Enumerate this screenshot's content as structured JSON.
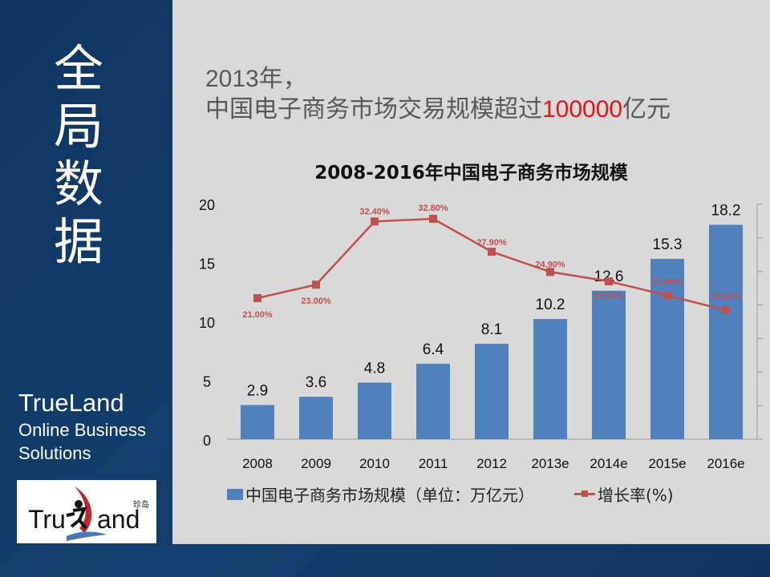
{
  "sidebar": {
    "vertical_title": [
      "全",
      "局",
      "数",
      "据"
    ],
    "brand_name": "TrueLand",
    "brand_line2": "Online Business",
    "brand_line3": "Solutions",
    "logo_text": "TrueLand",
    "logo_cn": "珍岛"
  },
  "headline": {
    "line1": "2013年，",
    "line2_prefix": "中国电子商务市场交易规模超过",
    "line2_highlight": "100000",
    "line2_suffix": "亿元"
  },
  "colors": {
    "bar": "#4f81bd",
    "line": "#c0504d",
    "highlight": "#e8111a",
    "panel": "#d9d9d9",
    "sidebar": "#123f6e"
  },
  "chart_data": {
    "type": "bar+line",
    "title": "2008-2016年中国电子商务市场规模",
    "categories": [
      "2008",
      "2009",
      "2010",
      "2011",
      "2012",
      "2013e",
      "2014e",
      "2015e",
      "2016e"
    ],
    "series": [
      {
        "name": "中国电子商务市场规模（单位：万亿元）",
        "type": "bar",
        "values": [
          2.9,
          3.6,
          4.8,
          6.4,
          8.1,
          10.2,
          12.6,
          15.3,
          18.2
        ]
      },
      {
        "name": "增长率(%)",
        "type": "line",
        "axis": "secondary",
        "values": [
          21.0,
          23.0,
          32.4,
          32.8,
          27.9,
          24.9,
          23.5,
          21.4,
          19.2
        ],
        "labels": [
          "21.00%",
          "23.00%",
          "32.40%",
          "32.80%",
          "27.90%",
          "24.90%",
          "23.50%",
          "21.40%",
          "19.20%"
        ]
      }
    ],
    "yticks": [
      "0",
      "5",
      "10",
      "15",
      "20"
    ],
    "ylim": [
      0,
      20
    ],
    "legend_position": "bottom",
    "grid": false
  }
}
